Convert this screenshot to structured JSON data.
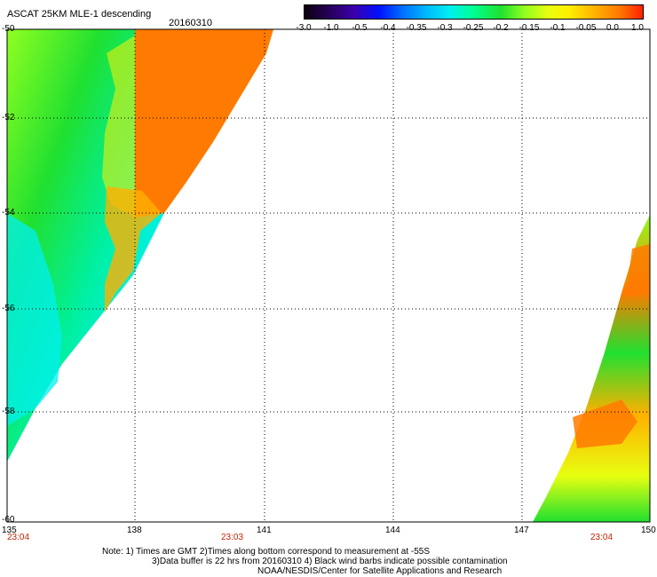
{
  "title": "ASCAT 25KM MLE-1 descending",
  "date": "20160310",
  "colorbar": {
    "labels": [
      "-3.0",
      "-1.0",
      "-0.5",
      "-0.4",
      "-0.35",
      "-0.3",
      "-0.25",
      "-0.2",
      "-0.15",
      "-0.1",
      "-0.05",
      "0.0",
      "1.0"
    ]
  },
  "lat_labels": [
    "-50",
    "-52",
    "-54",
    "-56",
    "-58",
    "-60"
  ],
  "lon_labels": [
    "135",
    "138",
    "141",
    "144",
    "147",
    "150"
  ],
  "time_labels": [
    "23:04",
    "23:03",
    "23:04"
  ],
  "colors": {
    "orange": "#ff7a00",
    "yellow": "#fff000",
    "lime": "#90ff20",
    "green": "#20e030",
    "cyan": "#00f0f0",
    "time_red": "#cc2200"
  },
  "notes": [
    "Note: 1) Times are GMT 2)Times along bottom correspond to measurement at -55S",
    "3)Data buffer is 22 hrs from 20160310 4) Black wind barbs indicate possible contamination",
    "NOAA/NESDIS/Center for Satellite Applications and Research"
  ]
}
